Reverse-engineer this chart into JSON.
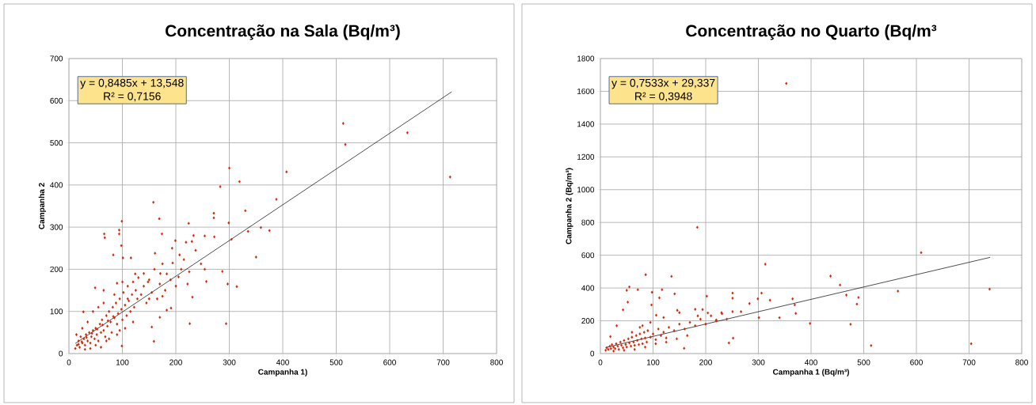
{
  "chart_data": [
    {
      "type": "scatter",
      "title": "Concentração na Sala (Bq/m³)",
      "xlabel": "Campanha 1)",
      "ylabel": "Campanha 2",
      "xlim": [
        0,
        800
      ],
      "ylim": [
        0,
        700
      ],
      "xticks": [
        0,
        100,
        200,
        300,
        400,
        500,
        600,
        700,
        800
      ],
      "yticks": [
        0,
        100,
        200,
        300,
        400,
        500,
        600,
        700
      ],
      "grid": true,
      "marker": "diamond",
      "annotations": [
        "y = 0,8485x + 13,548",
        "R² = 0,7156"
      ],
      "series": [
        {
          "color": "#d42000",
          "x": [
            513,
            517,
            633,
            713,
            300,
            319,
            407,
            283,
            388,
            158,
            169,
            99,
            271,
            271,
            330,
            299,
            224,
            359,
            375,
            335,
            304,
            66,
            67,
            94,
            94,
            254,
            272,
            233,
            350,
            287,
            297,
            314,
            226,
            294,
            159,
            99,
            83,
            98,
            101,
            116,
            199,
            193,
            219,
            230,
            237,
            161,
            174,
            207,
            215,
            194,
            247,
            254,
            175,
            171,
            183,
            205,
            225,
            257,
            231,
            222,
            191,
            183,
            170,
            155,
            27,
            49,
            90,
            124,
            148,
            175,
            12,
            15,
            18,
            20,
            22,
            25,
            28,
            30,
            32,
            35,
            38,
            40,
            42,
            45,
            48,
            50,
            52,
            55,
            58,
            60,
            62,
            65,
            68,
            70,
            72,
            75,
            78,
            80,
            82,
            85,
            88,
            90,
            92,
            95,
            98,
            100,
            102,
            105,
            108,
            110,
            112,
            115,
            118,
            120,
            122,
            125,
            128,
            130,
            135,
            140,
            145,
            150,
            155,
            160,
            165,
            170,
            180,
            190,
            200,
            210,
            14,
            25,
            35,
            45,
            55,
            65,
            30,
            50,
            70,
            90,
            105,
            120,
            60,
            40,
            75,
            95,
            85,
            100,
            65,
            18,
            24,
            33,
            43,
            53,
            63,
            73,
            83,
            110,
            140,
            150
          ],
          "values": [
            546,
            496,
            524,
            419,
            440,
            408,
            431,
            396,
            366,
            359,
            320,
            314,
            333,
            322,
            339,
            310,
            309,
            299,
            292,
            290,
            271,
            284,
            275,
            293,
            284,
            279,
            277,
            280,
            229,
            195,
            165,
            159,
            71,
            71,
            29,
            18,
            234,
            256,
            227,
            227,
            268,
            250,
            264,
            266,
            245,
            238,
            284,
            234,
            223,
            215,
            213,
            200,
            213,
            190,
            189,
            182,
            194,
            171,
            134,
            165,
            108,
            103,
            86,
            63,
            99,
            156,
            167,
            189,
            170,
            136,
            12,
            20,
            30,
            15,
            40,
            25,
            35,
            20,
            45,
            30,
            50,
            25,
            40,
            55,
            35,
            60,
            45,
            30,
            70,
            50,
            80,
            55,
            40,
            90,
            65,
            100,
            75,
            50,
            110,
            85,
            120,
            70,
            95,
            130,
            105,
            80,
            145,
            115,
            90,
            160,
            125,
            100,
            140,
            170,
            110,
            150,
            130,
            180,
            140,
            160,
            120,
            175,
            145,
            200,
            130,
            165,
            150,
            175,
            160,
            200,
            45,
            60,
            75,
            100,
            110,
            120,
            10,
            20,
            30,
            45,
            60,
            75,
            15,
            12,
            35,
            55,
            140,
            170,
            150,
            22,
            28,
            38,
            48,
            58,
            68,
            78,
            88,
            130,
            190,
            130
          ]
        },
        {
          "type": "line",
          "color": "#000000",
          "marker": "none",
          "x": [
            12,
            716
          ],
          "values": [
            24,
            621
          ]
        }
      ]
    },
    {
      "type": "scatter",
      "title": "Concentração no Quarto (Bq/m³",
      "xlabel": "Campanha 1 (Bq/m³)",
      "ylabel": "Campanha 2 (Bq/m³)",
      "xlim": [
        0,
        800
      ],
      "ylim": [
        0,
        1800
      ],
      "xticks": [
        0,
        100,
        200,
        300,
        400,
        500,
        600,
        700,
        800
      ],
      "yticks": [
        0,
        200,
        400,
        600,
        800,
        1000,
        1200,
        1400,
        1600,
        1800
      ],
      "grid": true,
      "marker": "diamond",
      "annotations": [
        "y = 0,7533x + 29,337",
        "R² = 0,3948"
      ],
      "series": [
        {
          "color": "#d42000",
          "x": [
            353,
            184,
            609,
            313,
            437,
            455,
            565,
            739,
            467,
            490,
            487,
            475,
            398,
            514,
            704,
            86,
            135,
            55,
            50,
            71,
            98,
            117,
            141,
            52,
            43,
            97,
            112,
            202,
            251,
            251,
            306,
            299,
            322,
            365,
            369,
            371,
            340,
            283,
            194,
            231,
            267,
            251,
            301,
            146,
            180,
            244,
            252,
            159,
            19,
            31,
            80,
            106,
            204,
            220,
            10,
            12,
            15,
            18,
            20,
            22,
            25,
            28,
            30,
            33,
            35,
            38,
            40,
            43,
            45,
            48,
            50,
            53,
            55,
            58,
            60,
            63,
            65,
            68,
            70,
            73,
            75,
            78,
            80,
            83,
            85,
            88,
            90,
            95,
            100,
            105,
            110,
            115,
            120,
            125,
            130,
            140,
            150,
            160,
            170,
            180,
            190,
            200,
            210,
            220,
            230,
            240,
            25,
            45,
            65,
            85,
            105,
            125,
            145,
            165,
            185,
            150,
            120,
            95,
            75,
            60
          ],
          "values": [
            1648,
            770,
            616,
            545,
            473,
            418,
            381,
            393,
            357,
            342,
            302,
            179,
            184,
            49,
            60,
            481,
            471,
            407,
            386,
            390,
            374,
            390,
            364,
            314,
            267,
            297,
            340,
            350,
            369,
            338,
            369,
            334,
            326,
            334,
            297,
            245,
            219,
            305,
            269,
            243,
            256,
            256,
            219,
            264,
            270,
            65,
            94,
            32,
            104,
            170,
            170,
            234,
            248,
            205,
            20,
            35,
            25,
            45,
            30,
            55,
            40,
            30,
            60,
            45,
            25,
            70,
            50,
            35,
            80,
            55,
            40,
            90,
            65,
            45,
            100,
            70,
            50,
            110,
            80,
            55,
            120,
            90,
            60,
            130,
            95,
            70,
            140,
            100,
            120,
            85,
            150,
            110,
            130,
            95,
            160,
            140,
            180,
            150,
            190,
            170,
            210,
            180,
            230,
            200,
            250,
            210,
            15,
            20,
            25,
            40,
            60,
            70,
            90,
            110,
            230,
            250,
            220,
            190,
            160,
            130
          ]
        },
        {
          "type": "line",
          "color": "#000000",
          "marker": "none",
          "x": [
            10,
            740
          ],
          "values": [
            37,
            587
          ]
        }
      ]
    }
  ]
}
